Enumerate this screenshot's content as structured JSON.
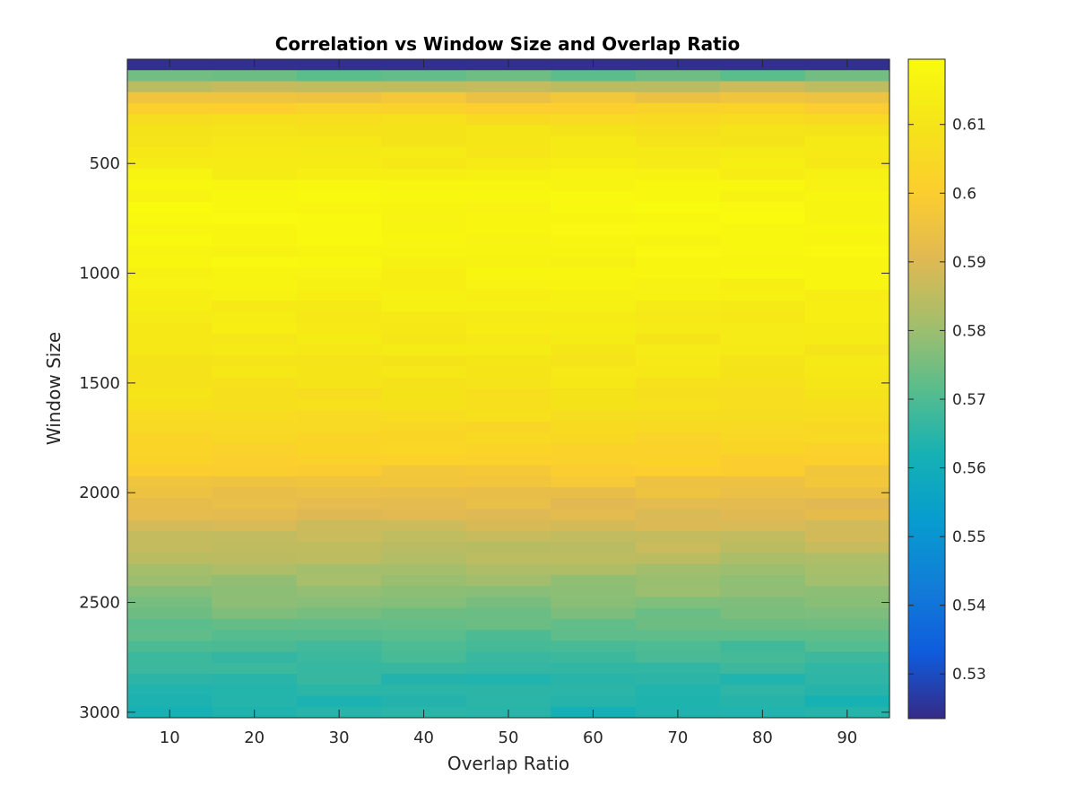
{
  "chart_data": {
    "type": "heatmap",
    "title": "Correlation vs Window Size and Overlap Ratio",
    "xlabel": "Overlap Ratio",
    "ylabel": "Window Size",
    "x": [
      10,
      20,
      30,
      40,
      50,
      60,
      70,
      80,
      90
    ],
    "xlim": [
      5,
      95
    ],
    "x_ticks": [
      10,
      20,
      30,
      40,
      50,
      60,
      70,
      80,
      90
    ],
    "y_start": 50,
    "y_step": 50,
    "ylim": [
      25,
      3025
    ],
    "y_reversed": true,
    "y_ticks": [
      500,
      1000,
      1500,
      2000,
      2500,
      3000
    ],
    "colorbar": {
      "colormap": "parula",
      "clim": [
        0.5235,
        0.6195
      ],
      "ticks": [
        0.53,
        0.54,
        0.55,
        0.56,
        0.57,
        0.58,
        0.59,
        0.6,
        0.61
      ],
      "tick_labels": [
        "0.53",
        "0.54",
        "0.55",
        "0.56",
        "0.57",
        "0.58",
        "0.59",
        "0.6",
        "0.61"
      ]
    },
    "profile": {
      "window_size": [
        50,
        100,
        150,
        200,
        300,
        400,
        500,
        600,
        700,
        800,
        1000,
        1200,
        1400,
        1600,
        1800,
        2000,
        2200,
        2400,
        2600,
        2800,
        3000
      ],
      "correlation": [
        0.5245,
        0.573,
        0.586,
        0.596,
        0.607,
        0.611,
        0.613,
        0.6165,
        0.618,
        0.6175,
        0.616,
        0.613,
        0.611,
        0.608,
        0.603,
        0.594,
        0.587,
        0.58,
        0.573,
        0.566,
        0.563
      ]
    }
  }
}
